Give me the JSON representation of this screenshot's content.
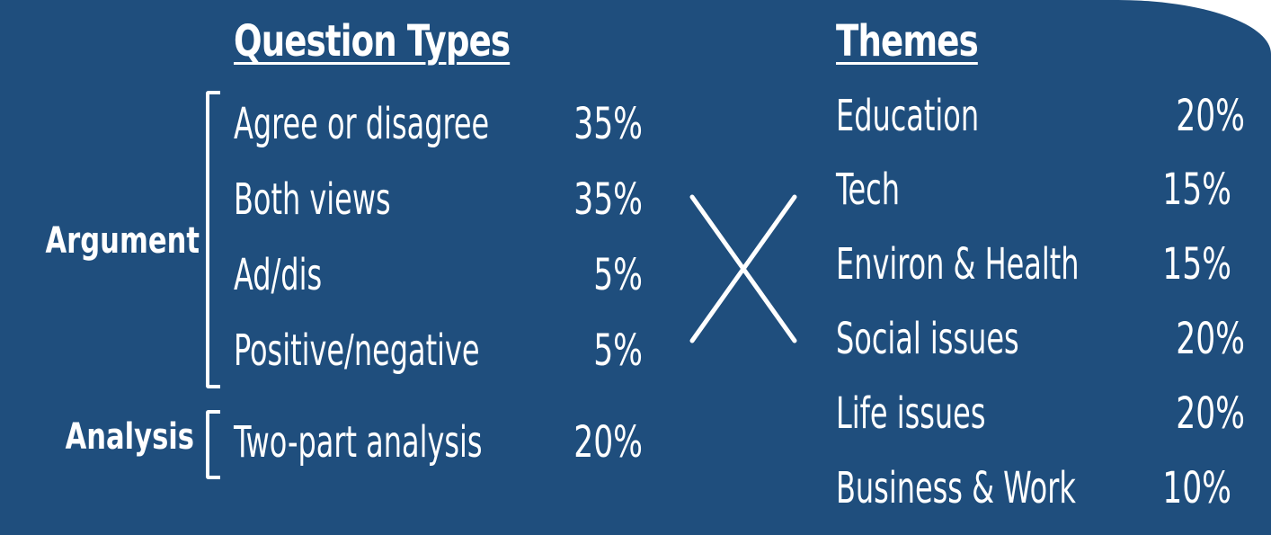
{
  "question_types": {
    "heading": "Question Types",
    "groups": [
      {
        "label": "Argument",
        "rows": [
          {
            "type": "Agree or disagree",
            "percent": "35%"
          },
          {
            "type": "Both views",
            "percent": "35%"
          },
          {
            "type": "Ad/dis",
            "percent": "5%"
          },
          {
            "type": "Positive/negative",
            "percent": "5%"
          }
        ]
      },
      {
        "label": "Analysis",
        "rows": [
          {
            "type": "Two-part analysis",
            "percent": "20%"
          }
        ]
      }
    ]
  },
  "themes": {
    "heading": "Themes",
    "rows": [
      {
        "theme": "Education",
        "percent": "20%"
      },
      {
        "theme": "Tech",
        "percent": "15%"
      },
      {
        "theme": "Environ & Health",
        "percent": "15%"
      },
      {
        "theme": "Social issues",
        "percent": "20%"
      },
      {
        "theme": "Life issues",
        "percent": "20%"
      },
      {
        "theme": "Business & Work",
        "percent": "10%"
      }
    ]
  },
  "colors": {
    "background": "#1f4e7d",
    "text": "#ffffff"
  },
  "icons": {
    "center": "cross-icon"
  }
}
